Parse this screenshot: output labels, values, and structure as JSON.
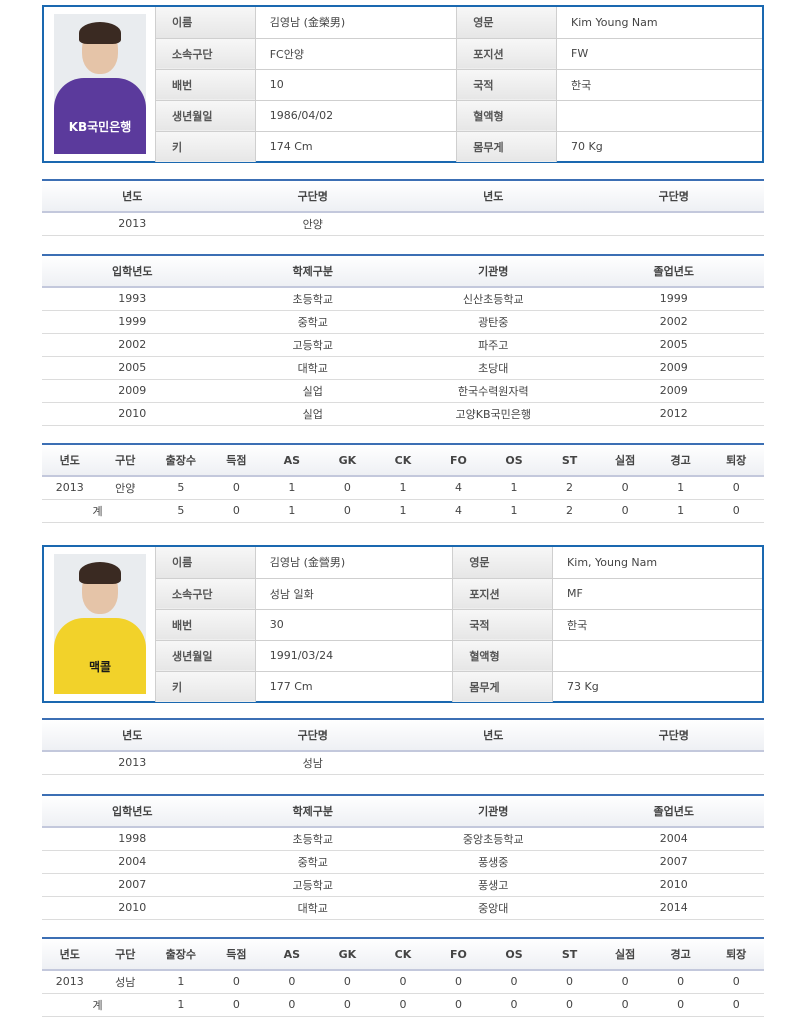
{
  "players": [
    {
      "photo": {
        "shirt_color": "#5b3a9c",
        "text_color": "#ffffff",
        "sponsor": "KB국민은행"
      },
      "profile": [
        [
          "이름",
          "김영남 (金榮男)",
          "영문",
          "Kim Young Nam"
        ],
        [
          "소속구단",
          "FC안양",
          "포지션",
          "FW"
        ],
        [
          "배번",
          "10",
          "국적",
          "한국"
        ],
        [
          "생년월일",
          "1986/04/02",
          "혈액형",
          ""
        ],
        [
          "키",
          "174 Cm",
          "몸무게",
          "70 Kg"
        ]
      ],
      "clubs": {
        "headers": [
          "년도",
          "구단명",
          "년도",
          "구단명"
        ],
        "rows": [
          [
            "2013",
            "안양",
            "",
            ""
          ]
        ]
      },
      "education": {
        "headers": [
          "입학년도",
          "학제구분",
          "기관명",
          "졸업년도"
        ],
        "rows": [
          [
            "1993",
            "초등학교",
            "신산초등학교",
            "1999"
          ],
          [
            "1999",
            "중학교",
            "광탄중",
            "2002"
          ],
          [
            "2002",
            "고등학교",
            "파주고",
            "2005"
          ],
          [
            "2005",
            "대학교",
            "초당대",
            "2009"
          ],
          [
            "2009",
            "실업",
            "한국수력원자력",
            "2009"
          ],
          [
            "2010",
            "실업",
            "고양KB국민은행",
            "2012"
          ]
        ]
      },
      "stats": {
        "headers": [
          "년도",
          "구단",
          "출장수",
          "득점",
          "AS",
          "GK",
          "CK",
          "FO",
          "OS",
          "ST",
          "실점",
          "경고",
          "퇴장"
        ],
        "rows": [
          [
            "2013",
            "안양",
            "5",
            "0",
            "1",
            "0",
            "1",
            "4",
            "1",
            "2",
            "0",
            "1",
            "0"
          ]
        ],
        "total": [
          "계",
          "5",
          "0",
          "1",
          "0",
          "1",
          "4",
          "1",
          "2",
          "0",
          "1",
          "0"
        ]
      }
    },
    {
      "photo": {
        "shirt_color": "#f2d22a",
        "text_color": "#1a1a1a",
        "sponsor": "맥콜"
      },
      "profile": [
        [
          "이름",
          "김영남 (金營男)",
          "영문",
          "Kim, Young Nam"
        ],
        [
          "소속구단",
          "성남 일화",
          "포지션",
          "MF"
        ],
        [
          "배번",
          "30",
          "국적",
          "한국"
        ],
        [
          "생년월일",
          "1991/03/24",
          "혈액형",
          ""
        ],
        [
          "키",
          "177 Cm",
          "몸무게",
          "73 Kg"
        ]
      ],
      "clubs": {
        "headers": [
          "년도",
          "구단명",
          "년도",
          "구단명"
        ],
        "rows": [
          [
            "2013",
            "성남",
            "",
            ""
          ]
        ]
      },
      "education": {
        "headers": [
          "입학년도",
          "학제구분",
          "기관명",
          "졸업년도"
        ],
        "rows": [
          [
            "1998",
            "초등학교",
            "중앙초등학교",
            "2004"
          ],
          [
            "2004",
            "중학교",
            "풍생중",
            "2007"
          ],
          [
            "2007",
            "고등학교",
            "풍생고",
            "2010"
          ],
          [
            "2010",
            "대학교",
            "중앙대",
            "2014"
          ]
        ]
      },
      "stats": {
        "headers": [
          "년도",
          "구단",
          "출장수",
          "득점",
          "AS",
          "GK",
          "CK",
          "FO",
          "OS",
          "ST",
          "실점",
          "경고",
          "퇴장"
        ],
        "rows": [
          [
            "2013",
            "성남",
            "1",
            "0",
            "0",
            "0",
            "0",
            "0",
            "0",
            "0",
            "0",
            "0",
            "0"
          ]
        ],
        "total": [
          "계",
          "1",
          "0",
          "0",
          "0",
          "0",
          "0",
          "0",
          "0",
          "0",
          "0",
          "0"
        ]
      }
    }
  ]
}
